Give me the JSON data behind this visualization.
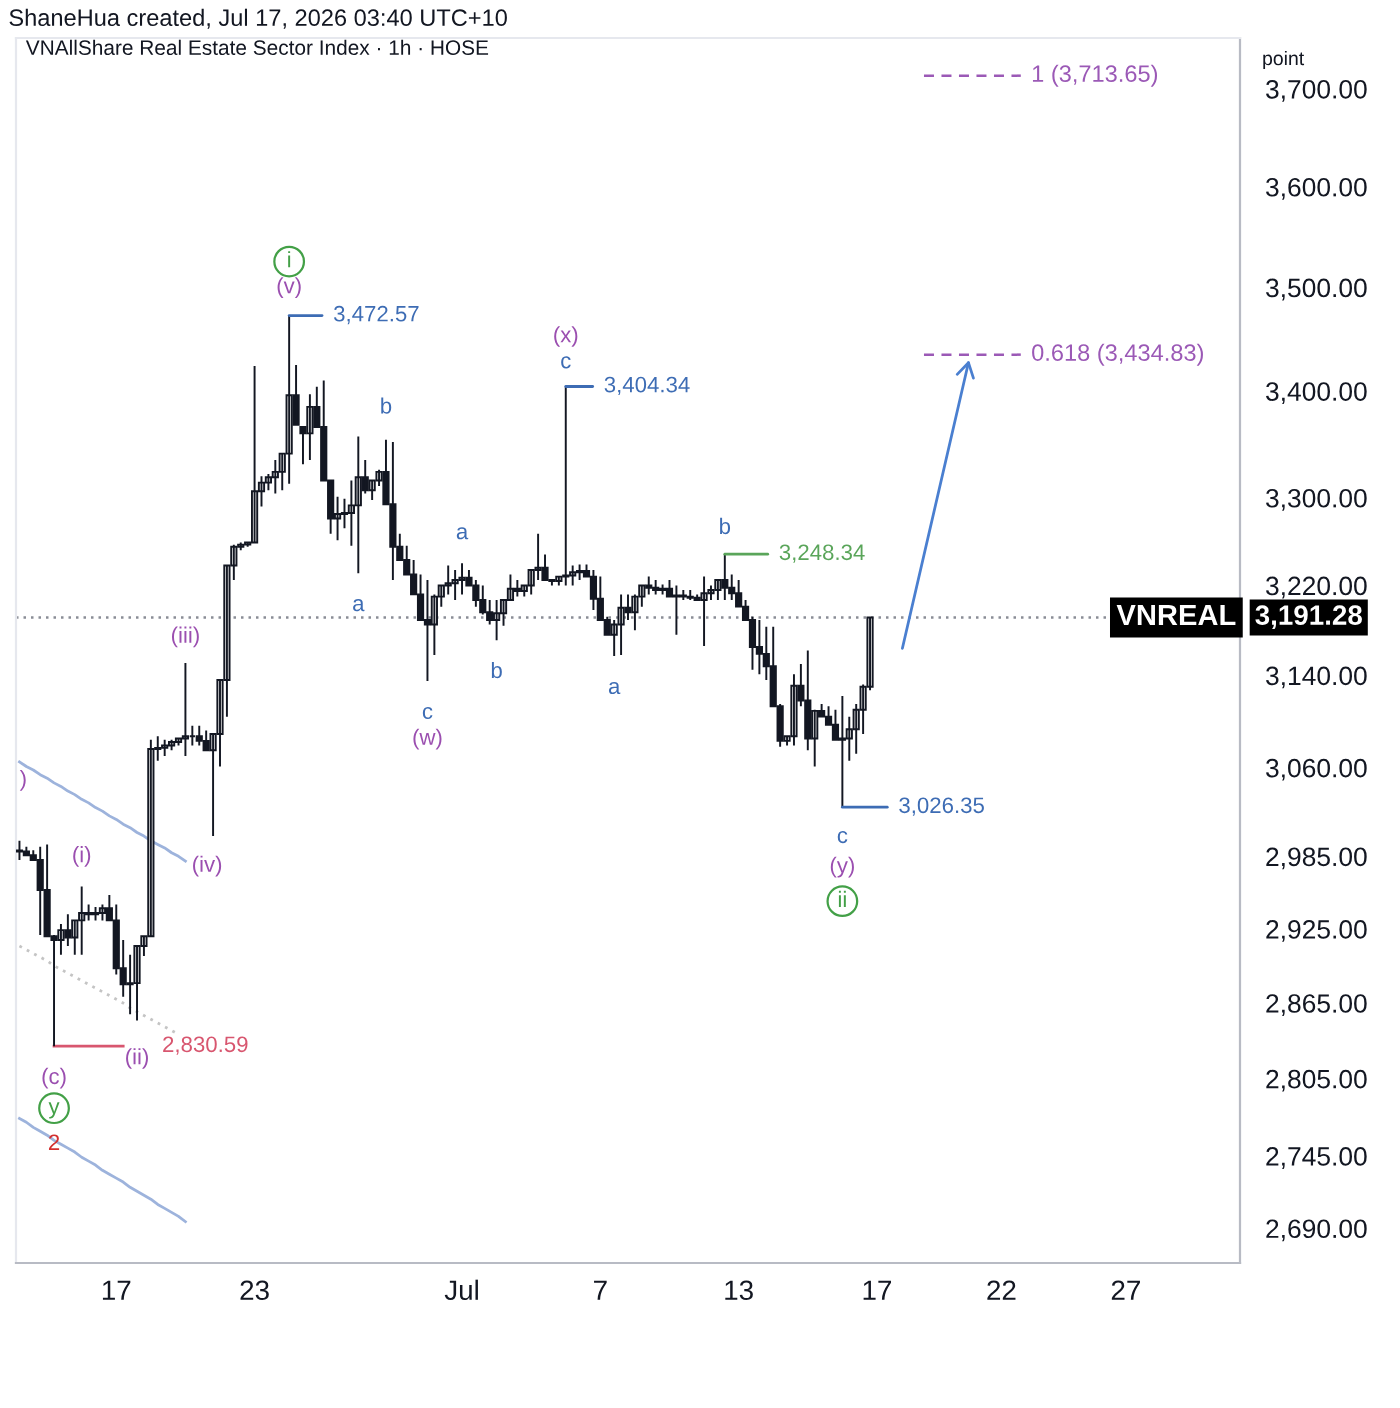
{
  "chart_data": {
    "type": "candlestick",
    "title": "VNAllShare Real Estate Sector Index · 1h · HOSE",
    "ylabel": "point",
    "color": "#131722",
    "categories": [
      null,
      null,
      null,
      null,
      null,
      null,
      null,
      null,
      null,
      null,
      null,
      null,
      null,
      null,
      "17",
      null,
      null,
      null,
      null,
      null,
      null,
      null,
      null,
      null,
      null,
      null,
      null,
      null,
      null,
      null,
      null,
      null,
      null,
      null,
      "23",
      null,
      null,
      null,
      null,
      null,
      null,
      null,
      null,
      null,
      null,
      null,
      null,
      null,
      null,
      null,
      null,
      null,
      null,
      null,
      null,
      null,
      null,
      null,
      null,
      null,
      null,
      null,
      null,
      null,
      "Jul",
      null,
      null,
      null,
      null,
      null,
      null,
      null,
      null,
      null,
      null,
      null,
      null,
      null,
      null,
      null,
      null,
      null,
      null,
      null,
      "7",
      null,
      null,
      null,
      null,
      null,
      null,
      null,
      null,
      null,
      null,
      null,
      null,
      null,
      null,
      null,
      null,
      null,
      null,
      null,
      "13",
      null,
      null,
      null,
      null,
      null,
      null,
      null,
      null,
      null,
      null,
      null,
      null,
      null,
      null,
      null,
      null,
      null,
      null,
      null,
      "17",
      null,
      null,
      null,
      null,
      null,
      null,
      null,
      null,
      null,
      null,
      null,
      null,
      null,
      null,
      null,
      null,
      null,
      "22",
      null,
      null,
      null,
      null,
      null,
      null,
      null,
      null,
      null,
      null,
      null,
      null,
      null,
      null,
      null,
      null,
      null,
      "27",
      null,
      null,
      null,
      null,
      null,
      null,
      null,
      null,
      null,
      null,
      null,
      null,
      null,
      null,
      null,
      null
    ],
    "ohlc": [
      [
        2990,
        2998,
        2982,
        2989
      ],
      [
        2989,
        2993,
        2985,
        2986
      ],
      [
        2986,
        2990,
        2982,
        2982
      ],
      [
        2982,
        2993,
        2920,
        2957
      ],
      [
        2957,
        2995,
        2919,
        2919
      ],
      [
        2919,
        2920,
        2830.59,
        2916
      ],
      [
        2916,
        2929,
        2904,
        2924
      ],
      [
        2924,
        2937,
        2911,
        2918
      ],
      [
        2918,
        2932,
        2904,
        2932
      ],
      [
        2932,
        2960,
        2904,
        2938
      ],
      [
        2938,
        2945,
        2932,
        2937
      ],
      [
        2937,
        2943,
        2932,
        2938
      ],
      [
        2938,
        2945,
        2932,
        2942
      ],
      [
        2942,
        2953,
        2932,
        2932
      ],
      [
        2932,
        2945,
        2888,
        2893
      ],
      [
        2893,
        2916,
        2870,
        2880
      ],
      [
        2880,
        2904,
        2856,
        2881
      ],
      [
        2881,
        2911,
        2851,
        2911
      ],
      [
        2911,
        2919,
        2903,
        2919
      ],
      [
        2919,
        3084,
        2919,
        3076
      ],
      [
        3076,
        3087,
        3066,
        3077
      ],
      [
        3077,
        3084,
        3070,
        3079
      ],
      [
        3079,
        3084,
        3075,
        3082
      ],
      [
        3082,
        3085,
        3079,
        3085
      ],
      [
        3085,
        3151,
        3070,
        3087
      ],
      [
        3087,
        3096,
        3079,
        3087
      ],
      [
        3087,
        3096,
        3079,
        3083
      ],
      [
        3083,
        3092,
        3075,
        3075
      ],
      [
        3075,
        3089,
        3002,
        3089
      ],
      [
        3089,
        3136,
        3061,
        3136
      ],
      [
        3136,
        3238,
        3104,
        3238
      ],
      [
        3238,
        3257,
        3225,
        3255
      ],
      [
        3255,
        3259,
        3252,
        3257
      ],
      [
        3257,
        3259,
        3255,
        3259
      ],
      [
        3259,
        3424,
        3259,
        3306
      ],
      [
        3306,
        3320,
        3292,
        3314
      ],
      [
        3314,
        3322,
        3307,
        3319
      ],
      [
        3319,
        3335,
        3304,
        3324
      ],
      [
        3324,
        3341,
        3307,
        3341
      ],
      [
        3341,
        3472.57,
        3313,
        3396
      ],
      [
        3396,
        3425,
        3368,
        3368
      ],
      [
        3366,
        3366,
        3331,
        3360
      ],
      [
        3360,
        3397,
        3335,
        3385
      ],
      [
        3385,
        3404,
        3366,
        3366
      ],
      [
        3366,
        3410,
        3316,
        3316
      ],
      [
        3316,
        3316,
        3267,
        3281
      ],
      [
        3281,
        3301,
        3261,
        3285
      ],
      [
        3285,
        3299,
        3272,
        3286
      ],
      [
        3286,
        3316,
        3256,
        3293
      ],
      [
        3293,
        3357,
        3231,
        3319
      ],
      [
        3319,
        3335,
        3304,
        3307
      ],
      [
        3307,
        3316,
        3298,
        3316
      ],
      [
        3316,
        3326,
        3311,
        3324
      ],
      [
        3324,
        3354,
        3294,
        3294
      ],
      [
        3294,
        3352,
        3225,
        3255
      ],
      [
        3255,
        3267,
        3243,
        3243
      ],
      [
        3243,
        3256,
        3230,
        3230
      ],
      [
        3230,
        3243,
        3212,
        3212
      ],
      [
        3212,
        3230,
        3189,
        3189
      ],
      [
        3189,
        3225,
        3135,
        3185
      ],
      [
        3185,
        3212,
        3158,
        3210
      ],
      [
        3210,
        3220,
        3201,
        3220
      ],
      [
        3220,
        3238,
        3212,
        3222
      ],
      [
        3222,
        3234,
        3207,
        3225
      ],
      [
        3225,
        3240,
        3212,
        3227
      ],
      [
        3227,
        3234,
        3220,
        3220
      ],
      [
        3220,
        3225,
        3201,
        3207
      ],
      [
        3207,
        3220,
        3194,
        3196
      ],
      [
        3196,
        3207,
        3185,
        3189
      ],
      [
        3189,
        3207,
        3171,
        3195
      ],
      [
        3195,
        3207,
        3184,
        3207
      ],
      [
        3207,
        3230,
        3207,
        3217
      ],
      [
        3217,
        3225,
        3210,
        3215
      ],
      [
        3215,
        3220,
        3210,
        3220
      ],
      [
        3220,
        3234,
        3212,
        3234
      ],
      [
        3234,
        3267,
        3225,
        3236
      ],
      [
        3236,
        3248,
        3225,
        3225
      ],
      [
        3225,
        3225,
        3220,
        3224
      ],
      [
        3224,
        3228,
        3220,
        3228
      ],
      [
        3228,
        3404.34,
        3220,
        3229
      ],
      [
        3229,
        3238,
        3220,
        3232
      ],
      [
        3232,
        3239,
        3225,
        3233
      ],
      [
        3233,
        3239,
        3228,
        3228
      ],
      [
        3228,
        3234,
        3198,
        3208
      ],
      [
        3208,
        3228,
        3189,
        3189
      ],
      [
        3189,
        3192,
        3176,
        3176
      ],
      [
        3176,
        3189,
        3157,
        3185
      ],
      [
        3185,
        3212,
        3158,
        3200
      ],
      [
        3200,
        3212,
        3189,
        3196
      ],
      [
        3196,
        3212,
        3180,
        3210
      ],
      [
        3210,
        3220,
        3201,
        3220
      ],
      [
        3220,
        3228,
        3212,
        3218
      ],
      [
        3218,
        3225,
        3212,
        3216
      ],
      [
        3216,
        3221,
        3212,
        3217
      ],
      [
        3217,
        3225,
        3210,
        3210
      ],
      [
        3210,
        3220,
        3176,
        3211
      ],
      [
        3211,
        3216,
        3207,
        3210
      ],
      [
        3210,
        3216,
        3207,
        3209
      ],
      [
        3209,
        3212,
        3207,
        3207
      ],
      [
        3207,
        3228,
        3166,
        3213
      ],
      [
        3213,
        3220,
        3207,
        3216
      ],
      [
        3216,
        3225,
        3207,
        3225
      ],
      [
        3225,
        3248.34,
        3207,
        3218
      ],
      [
        3218,
        3230,
        3207,
        3213
      ],
      [
        3213,
        3225,
        3201,
        3201
      ],
      [
        3201,
        3207,
        3189,
        3189
      ],
      [
        3189,
        3192,
        3145,
        3165
      ],
      [
        3165,
        3189,
        3141,
        3159
      ],
      [
        3159,
        3183,
        3136,
        3148
      ],
      [
        3148,
        3183,
        3113,
        3113
      ],
      [
        3113,
        3115,
        3078,
        3083
      ],
      [
        3083,
        3087,
        3079,
        3087
      ],
      [
        3087,
        3141,
        3079,
        3131
      ],
      [
        3131,
        3150,
        3113,
        3118
      ],
      [
        3118,
        3162,
        3075,
        3085
      ],
      [
        3085,
        3110,
        3061,
        3109
      ],
      [
        3109,
        3115,
        3104,
        3104
      ],
      [
        3104,
        3113,
        3096,
        3097
      ],
      [
        3097,
        3110,
        3084,
        3084
      ],
      [
        3084,
        3122,
        3026.35,
        3085
      ],
      [
        3085,
        3104,
        3066,
        3093
      ],
      [
        3093,
        3115,
        3072,
        3110
      ],
      [
        3110,
        3132,
        3089,
        3130
      ],
      [
        3130,
        3191.28,
        3127,
        3191.28
      ],
      null,
      null,
      null,
      null,
      null,
      null,
      null,
      null,
      null,
      null,
      null,
      null,
      null,
      null,
      null,
      null,
      null,
      null,
      null,
      null,
      null,
      null,
      null,
      null,
      null,
      null,
      null,
      null,
      null,
      null,
      null,
      null,
      null,
      null,
      null,
      null,
      null,
      null,
      null,
      null,
      null,
      null,
      null,
      null,
      null,
      null,
      null,
      null,
      null,
      null,
      null,
      null,
      null
    ],
    "series": [
      {
        "type": "line",
        "color": "#9db3dc",
        "line_style": "solid",
        "values": [
          3065,
          3061,
          3058,
          3054,
          3051,
          3047,
          3044,
          3040,
          3037,
          3033,
          3030,
          3026,
          3023,
          3019,
          3016,
          3012,
          3009,
          3005,
          3002,
          2998,
          2995,
          2992,
          2988,
          2985,
          2981,
          null,
          null,
          null,
          null,
          null,
          null,
          null,
          null,
          null,
          null,
          null,
          null,
          null,
          null,
          null,
          null,
          null,
          null,
          null,
          null,
          null,
          null,
          null,
          null,
          null,
          null,
          null,
          null,
          null,
          null,
          null,
          null,
          null,
          null,
          null,
          null,
          null,
          null,
          null,
          null,
          null,
          null,
          null,
          null,
          null,
          null,
          null,
          null,
          null,
          null,
          null,
          null,
          null,
          null,
          null,
          null,
          null,
          null,
          null,
          null,
          null,
          null,
          null,
          null,
          null,
          null,
          null,
          null,
          null,
          null,
          null,
          null,
          null,
          null,
          null,
          null,
          null,
          null,
          null,
          null,
          null,
          null,
          null,
          null,
          null,
          null,
          null,
          null,
          null,
          null,
          null,
          null,
          null,
          null,
          null,
          null,
          null,
          null,
          null,
          null,
          null,
          null,
          null,
          null,
          null,
          null,
          null,
          null,
          null,
          null,
          null,
          null,
          null,
          null,
          null,
          null,
          null,
          null,
          null,
          null,
          null,
          null,
          null,
          null,
          null,
          null,
          null,
          null,
          null,
          null,
          null,
          null,
          null,
          null,
          null,
          null,
          null,
          null,
          null,
          null,
          null,
          null,
          null,
          null,
          null,
          null,
          null,
          null,
          null,
          null,
          null,
          null
        ]
      },
      {
        "type": "line",
        "color": "#c4c4c4",
        "line_style": "dotted",
        "values": [
          2911,
          2908,
          2905,
          2902,
          2899,
          2895,
          2892,
          2889,
          2886,
          2883,
          2880,
          2877,
          2874,
          2871,
          2868,
          2865,
          2861,
          2858,
          2855,
          2852,
          2849,
          2846,
          2843,
          2840,
          null,
          null,
          null,
          null,
          null,
          null,
          null,
          null,
          null,
          null,
          null,
          null,
          null,
          null,
          null,
          null,
          null,
          null,
          null,
          null,
          null,
          null,
          null,
          null,
          null,
          null,
          null,
          null,
          null,
          null,
          null,
          null,
          null,
          null,
          null,
          null,
          null,
          null,
          null,
          null,
          null,
          null,
          null,
          null,
          null,
          null,
          null,
          null,
          null,
          null,
          null,
          null,
          null,
          null,
          null,
          null,
          null,
          null,
          null,
          null,
          null,
          null,
          null,
          null,
          null,
          null,
          null,
          null,
          null,
          null,
          null,
          null,
          null,
          null,
          null,
          null,
          null,
          null,
          null,
          null,
          null,
          null,
          null,
          null,
          null,
          null,
          null,
          null,
          null,
          null,
          null,
          null,
          null,
          null,
          null,
          null,
          null,
          null,
          null,
          null,
          null,
          null,
          null,
          null,
          null,
          null,
          null,
          null,
          null,
          null,
          null,
          null,
          null,
          null,
          null,
          null,
          null,
          null,
          null,
          null,
          null,
          null,
          null,
          null,
          null,
          null,
          null,
          null,
          null,
          null,
          null,
          null,
          null,
          null,
          null,
          null,
          null,
          null,
          null,
          null,
          null,
          null,
          null,
          null,
          null,
          null,
          null,
          null,
          null,
          null,
          null,
          null,
          null
        ]
      },
      {
        "type": "line",
        "color": "#9db3dc",
        "line_style": "solid",
        "values": [
          2774,
          2771,
          2767,
          2764,
          2761,
          2757,
          2754,
          2751,
          2748,
          2744,
          2741,
          2738,
          2734,
          2731,
          2728,
          2725,
          2721,
          2718,
          2715,
          2712,
          2708,
          2705,
          2702,
          2699,
          2695,
          null,
          null,
          null,
          null,
          null,
          null,
          null,
          null,
          null,
          null,
          null,
          null,
          null,
          null,
          null,
          null,
          null,
          null,
          null,
          null,
          null,
          null,
          null,
          null,
          null,
          null,
          null,
          null,
          null,
          null,
          null,
          null,
          null,
          null,
          null,
          null,
          null,
          null,
          null,
          null,
          null,
          null,
          null,
          null,
          null,
          null,
          null,
          null,
          null,
          null,
          null,
          null,
          null,
          null,
          null,
          null,
          null,
          null,
          null,
          null,
          null,
          null,
          null,
          null,
          null,
          null,
          null,
          null,
          null,
          null,
          null,
          null,
          null,
          null,
          null,
          null,
          null,
          null,
          null,
          null,
          null,
          null,
          null,
          null,
          null,
          null,
          null,
          null,
          null,
          null,
          null,
          null,
          null,
          null,
          null,
          null,
          null,
          null,
          null,
          null,
          null,
          null,
          null,
          null,
          null,
          null,
          null,
          null,
          null,
          null,
          null,
          null,
          null,
          null,
          null,
          null,
          null,
          null,
          null,
          null,
          null,
          null,
          null,
          null,
          null,
          null,
          null,
          null,
          null,
          null,
          null,
          null,
          null,
          null,
          null,
          null,
          null,
          null,
          null,
          null,
          null,
          null,
          null,
          null,
          null,
          null,
          null,
          null,
          null,
          null,
          null,
          null
        ]
      },
      {
        "type": "line",
        "color": "#d8566f",
        "line_style": "solid",
        "values": [
          null,
          null,
          null,
          null,
          null,
          2830.59,
          2830.59,
          2830.59,
          2830.59,
          2830.59,
          2830.59,
          2830.59,
          2830.59,
          2830.59,
          2830.59,
          2830.59,
          null,
          null,
          null,
          null,
          null,
          null,
          null,
          null,
          null,
          null,
          null,
          null,
          null,
          null,
          null,
          null,
          null,
          null,
          null,
          null,
          null,
          null,
          null,
          null,
          null,
          null,
          null,
          null,
          null,
          null,
          null,
          null,
          null,
          null,
          null,
          null,
          null,
          null,
          null,
          null,
          null,
          null,
          null,
          null,
          null,
          null,
          null,
          null,
          null,
          null,
          null,
          null,
          null,
          null,
          null,
          null,
          null,
          null,
          null,
          null,
          null,
          null,
          null,
          null,
          null,
          null,
          null,
          null,
          null,
          null,
          null,
          null,
          null,
          null,
          null,
          null,
          null,
          null,
          null,
          null,
          null,
          null,
          null,
          null,
          null,
          null,
          null,
          null,
          null,
          null,
          null,
          null,
          null,
          null,
          null,
          null,
          null,
          null,
          null,
          null,
          null,
          null,
          null,
          null,
          null,
          null,
          null,
          null,
          null,
          null,
          null,
          null,
          null,
          null,
          null,
          null,
          null,
          null,
          null,
          null,
          null,
          null,
          null,
          null,
          null,
          null,
          null,
          null,
          null,
          null,
          null,
          null,
          null,
          null,
          null,
          null,
          null,
          null,
          null,
          null,
          null,
          null,
          null,
          null,
          null,
          null,
          null,
          null,
          null,
          null,
          null,
          null,
          null,
          null,
          null,
          null,
          null,
          null,
          null,
          null,
          null
        ]
      }
    ],
    "log": "y",
    "ylim": [
      2664,
      3753
    ],
    "yticks": [
      {
        "value": 2690,
        "label": "2,690.00"
      },
      {
        "value": 2745,
        "label": "2,745.00"
      },
      {
        "value": 2805,
        "label": "2,805.00"
      },
      {
        "value": 2865,
        "label": "2,865.00"
      },
      {
        "value": 2925,
        "label": "2,925.00"
      },
      {
        "value": 2985,
        "label": "2,985.00"
      },
      {
        "value": 3060,
        "label": "3,060.00"
      },
      {
        "value": 3140,
        "label": "3,140.00"
      },
      {
        "value": 3220,
        "label": "3,220.00"
      },
      {
        "value": 3300,
        "label": "3,300.00"
      },
      {
        "value": 3400,
        "label": "3,400.00"
      },
      {
        "value": 3500,
        "label": "3,500.00"
      },
      {
        "value": 3600,
        "label": "3,600.00"
      },
      {
        "value": 3700,
        "label": "3,700.00"
      }
    ],
    "ref_lines": [
      {
        "axis": "y",
        "value": 3713.65,
        "label": "1 (3,713.65)",
        "color": "#9b59b6",
        "line_style": "dashed"
      },
      {
        "axis": "y",
        "value": 3434.83,
        "label": "0.618 (3,434.83)",
        "color": "#9b59b6",
        "line_style": "dashed"
      },
      {
        "axis": "y",
        "value": 3191.28,
        "label": "VNREAL",
        "color": "#8a8d96",
        "line_style": "dotted"
      }
    ],
    "annotations": [
      "ShaneHua created, Jul 17, 2026 03:40 UTC+10",
      {
        "text": "(v)",
        "y": 3472.57
      },
      "i",
      "3,472.57",
      {
        "text": "b",
        "y": 3354
      },
      {
        "text": "a",
        "y": 3231
      },
      {
        "text": "a",
        "y": 3240
      },
      {
        "text": "c",
        "y": 3135
      },
      "(w)",
      {
        "text": "b",
        "y": 3171
      },
      {
        "text": "c",
        "y": 3404.34
      },
      {
        "text": "(x)",
        "y": 3404.34
      },
      "3,404.34",
      {
        "text": "a",
        "y": 3157
      },
      {
        "text": "b",
        "y": 3248.34
      },
      "3,248.34",
      {
        "text": "c",
        "y": 3026.35
      },
      "3,026.35",
      "(y)",
      "ii",
      {
        "text": "(iii)",
        "y": 3151
      },
      {
        "text": "(iv)",
        "y": 3002
      },
      {
        "text": "(i)",
        "y": 2960
      },
      {
        "text": "(ii)",
        "y": 2851
      },
      {
        "text": "(c)",
        "y": 2830.59
      },
      "2,830.59",
      "y",
      "2",
      ")",
      "3,191.28"
    ]
  }
}
